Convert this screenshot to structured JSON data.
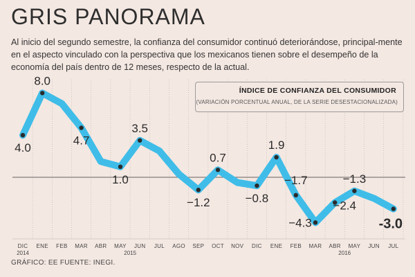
{
  "header": {
    "title": "GRIS PANORAMA",
    "subtitle": "Al inicio del segundo semestre, la confianza del consumidor continuó deteriorándose, principal-mente en el aspecto vinculado con la perspectiva que los mexicanos tienen sobre el desempeño de la economía del país dentro de 12 meses, respecto de la actual."
  },
  "legend": {
    "title": "ÍNDICE DE CONFIANZA DEL CONSUMIDOR",
    "subtitle": "(VARIACIÓN PORCENTUAL ANUAL, DE LA SERIE DESESTACIONALIZADA)"
  },
  "footer": {
    "credit": "GRÁFICO: EE  FUENTE: INEGI."
  },
  "colors": {
    "line": "#3fbde8",
    "marker": "#2b2b2b",
    "zero_line": "#333333",
    "grid": "#b9b0ab"
  },
  "chart_data": {
    "type": "line",
    "title": "ÍNDICE DE CONFIANZA DEL CONSUMIDOR",
    "ylabel": "",
    "xlabel": "",
    "ylim": [
      -5,
      9
    ],
    "categories": [
      "DIC",
      "ENE",
      "FEB",
      "MAR",
      "ABR",
      "MAY",
      "JUN",
      "JUL",
      "AGO",
      "SEP",
      "OCT",
      "NOV",
      "DIC",
      "ENE",
      "FEB",
      "MAR",
      "ABR",
      "MAY",
      "JUN",
      "JUL"
    ],
    "year_labels": [
      {
        "index": 0,
        "label": "2014"
      },
      {
        "index": 6,
        "label": "2015"
      },
      {
        "index": 16,
        "label": "2016"
      }
    ],
    "series": [
      {
        "name": "Índice de confianza del consumidor",
        "values": [
          4.0,
          8.0,
          7.0,
          4.7,
          1.5,
          1.0,
          3.5,
          2.5,
          0.3,
          -1.2,
          0.7,
          -0.5,
          -0.8,
          1.9,
          -1.7,
          -4.3,
          -2.4,
          -1.3,
          -2.0,
          -3.0
        ]
      }
    ],
    "data_labels": [
      {
        "index": 0,
        "text": "4.0"
      },
      {
        "index": 1,
        "text": "8.0"
      },
      {
        "index": 3,
        "text": "4.7"
      },
      {
        "index": 5,
        "text": "1.0"
      },
      {
        "index": 6,
        "text": "3.5"
      },
      {
        "index": 9,
        "text": "−1.2"
      },
      {
        "index": 10,
        "text": "0.7"
      },
      {
        "index": 12,
        "text": "−0.8"
      },
      {
        "index": 13,
        "text": "1.9"
      },
      {
        "index": 14,
        "text": "−1.7"
      },
      {
        "index": 15,
        "text": "−4.3"
      },
      {
        "index": 16,
        "text": "−2.4"
      },
      {
        "index": 17,
        "text": "−1.3"
      },
      {
        "index": 19,
        "text": "-3.0"
      }
    ],
    "markers": [
      0,
      1,
      3,
      5,
      6,
      9,
      10,
      12,
      13,
      14,
      15,
      16,
      17,
      19
    ],
    "highlight_label_index": 19
  }
}
